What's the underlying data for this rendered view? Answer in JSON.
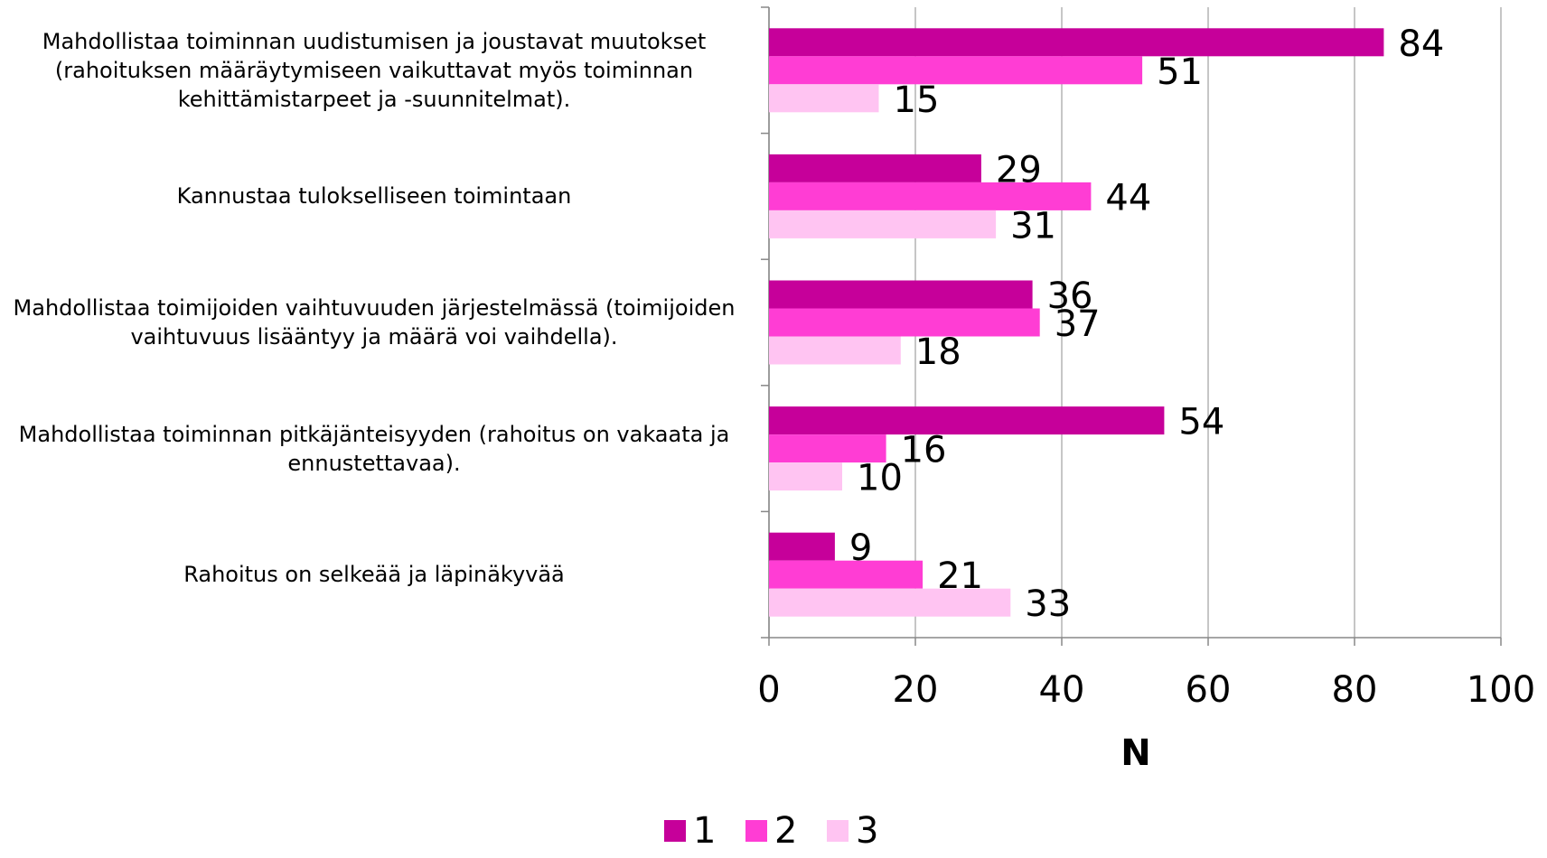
{
  "chart_data": {
    "type": "bar",
    "orientation": "horizontal",
    "categories": [
      "Mahdollistaa toiminnan uudistumisen ja joustavat muutokset (rahoituksen määräytymiseen vaikuttavat myös toiminnan kehittämistarpeet ja -suunnitelmat).",
      "Kannustaa tulokselliseen toimintaan",
      "Mahdollistaa toimijoiden vaihtuvuuden järjestelmässä (toimijoiden vaihtuvuus lisääntyy ja määrä voi vaihdella).",
      "Mahdollistaa toiminnan pitkäjänteisyyden (rahoitus on vakaata ja ennustettavaa).",
      "Rahoitus on selkeää ja läpinäkyvää"
    ],
    "series": [
      {
        "name": "1",
        "color": "#c6009a",
        "values": [
          84,
          29,
          36,
          54,
          9
        ]
      },
      {
        "name": "2",
        "color": "#ff3dd4",
        "values": [
          51,
          44,
          37,
          16,
          21
        ]
      },
      {
        "name": "3",
        "color": "#ffc4f2",
        "values": [
          15,
          31,
          18,
          10,
          33
        ]
      }
    ],
    "xlim": [
      0,
      100
    ],
    "xticks": [
      0,
      20,
      40,
      60,
      80,
      100
    ],
    "xlabel": "N",
    "grid": true,
    "legend": "bottom"
  }
}
